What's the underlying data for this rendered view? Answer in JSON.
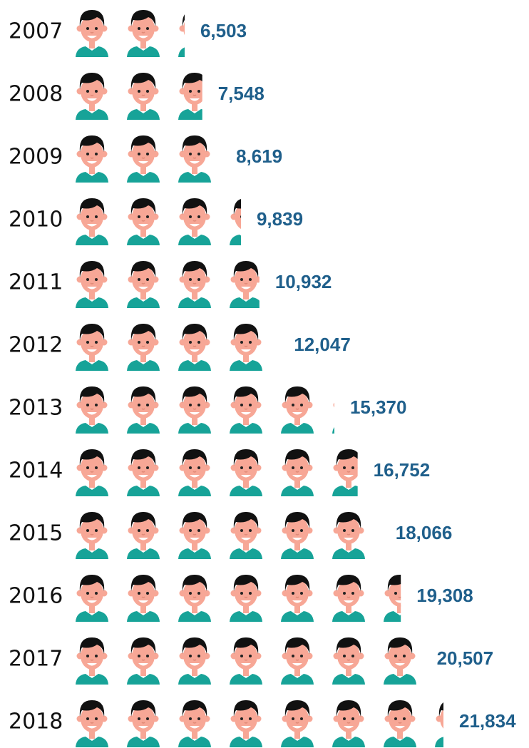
{
  "chart_data": {
    "type": "pictogram",
    "categories": [
      "2007",
      "2008",
      "2009",
      "2010",
      "2011",
      "2012",
      "2013",
      "2014",
      "2015",
      "2016",
      "2017",
      "2018"
    ],
    "values": [
      6503,
      7548,
      8619,
      9839,
      10932,
      12047,
      15370,
      16752,
      18066,
      19308,
      20507,
      21834
    ],
    "value_labels": [
      "6,503",
      "7,548",
      "8,619",
      "9,839",
      "10,932",
      "12,047",
      "15,370",
      "16,752",
      "18,066",
      "19,308",
      "20,507",
      "21,834"
    ],
    "label_color": "#1f5f8b"
  }
}
